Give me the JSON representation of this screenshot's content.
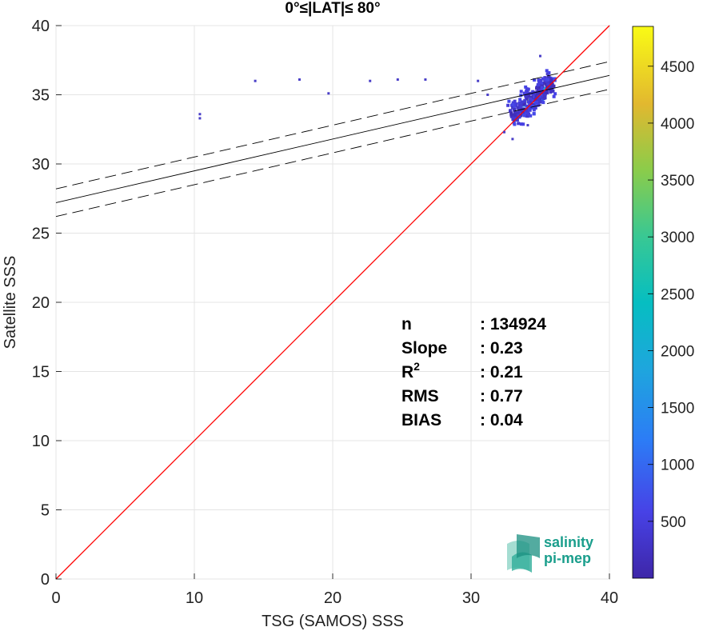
{
  "chart_data": {
    "type": "heatmap",
    "title": "0°≤|LAT|≤ 80°",
    "xlabel": "TSG (SAMOS) SSS",
    "ylabel": "Satellite SSS",
    "xlim": [
      0,
      40
    ],
    "ylim": [
      0,
      40
    ],
    "xticks": [
      "0",
      "10",
      "20",
      "30",
      "40"
    ],
    "yticks": [
      "0",
      "5",
      "10",
      "15",
      "20",
      "25",
      "30",
      "35",
      "40"
    ],
    "grid": true,
    "identity_line": {
      "color": "#ff0000",
      "from": [
        0,
        0
      ],
      "to": [
        40,
        40
      ]
    },
    "regression": {
      "slope": 0.23,
      "intercept": 27.2,
      "band_offset": 1.0
    },
    "stats": [
      {
        "label": "n",
        "value": ": 134924"
      },
      {
        "label": "Slope",
        "value": ": 0.23"
      },
      {
        "label": "R",
        "sup": "2",
        "value": ": 0.21"
      },
      {
        "label": "RMS",
        "value": ": 0.77"
      },
      {
        "label": "BIAS",
        "value": ": 0.04"
      }
    ],
    "colorbar": {
      "min": 0,
      "max": 4850,
      "ticks": [
        "500",
        "1000",
        "1500",
        "2000",
        "2500",
        "3000",
        "3500",
        "4000",
        "4500"
      ],
      "colormap": "parula"
    },
    "density_cells": [
      {
        "x": 34.2,
        "y": 34.6,
        "v": 3500
      },
      {
        "x": 34.6,
        "y": 34.9,
        "v": 4200
      },
      {
        "x": 35.0,
        "y": 35.2,
        "v": 2800
      },
      {
        "x": 33.8,
        "y": 34.3,
        "v": 1600
      },
      {
        "x": 35.3,
        "y": 35.4,
        "v": 1800
      },
      {
        "x": 34.4,
        "y": 34.1,
        "v": 1200
      },
      {
        "x": 35.6,
        "y": 35.8,
        "v": 1000
      },
      {
        "x": 33.5,
        "y": 34.0,
        "v": 900
      },
      {
        "x": 35.1,
        "y": 34.7,
        "v": 1100
      },
      {
        "x": 34.0,
        "y": 35.0,
        "v": 700
      },
      {
        "x": 34.9,
        "y": 35.6,
        "v": 650
      },
      {
        "x": 33.9,
        "y": 33.6,
        "v": 600
      },
      {
        "x": 36.0,
        "y": 36.1,
        "v": 700
      },
      {
        "x": 34.7,
        "y": 34.4,
        "v": 1400
      },
      {
        "x": 35.4,
        "y": 36.0,
        "v": 500
      }
    ],
    "outliers": [
      {
        "x": 10.4,
        "y": 33.6
      },
      {
        "x": 10.4,
        "y": 33.3
      },
      {
        "x": 14.4,
        "y": 36.0
      },
      {
        "x": 17.6,
        "y": 36.1
      },
      {
        "x": 19.7,
        "y": 35.1
      },
      {
        "x": 22.7,
        "y": 36.0
      },
      {
        "x": 24.7,
        "y": 36.1
      },
      {
        "x": 26.7,
        "y": 36.1
      },
      {
        "x": 30.5,
        "y": 36.0
      },
      {
        "x": 31.2,
        "y": 35.0
      },
      {
        "x": 32.4,
        "y": 32.3
      },
      {
        "x": 33.0,
        "y": 31.8
      },
      {
        "x": 35.0,
        "y": 37.8
      },
      {
        "x": 35.5,
        "y": 36.5
      },
      {
        "x": 34.1,
        "y": 32.8
      }
    ]
  },
  "logo": {
    "line1": "salinity",
    "line2": "pi-mep",
    "color": "#1a9e8c"
  }
}
